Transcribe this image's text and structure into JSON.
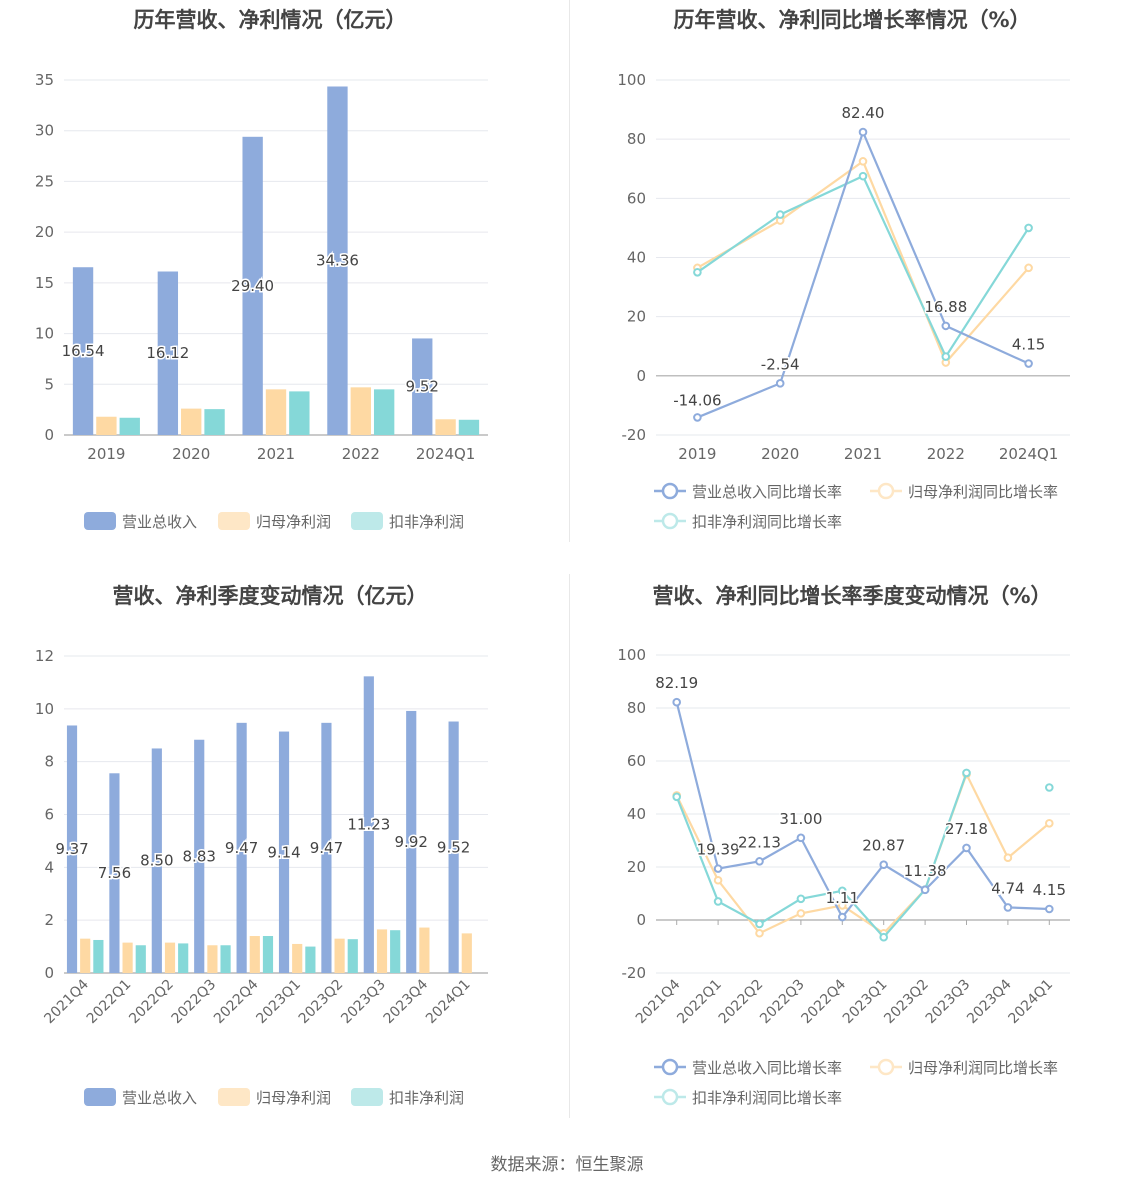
{
  "source": "数据来源：恒生聚源",
  "colors": {
    "revenue": "#8eabdc",
    "net_profit": "#fed9a3",
    "deducted_profit": "#85d8d8",
    "axis": "#aaaaaa",
    "grid": "#e6e8ee",
    "text": "#666666",
    "label": "#444444"
  },
  "chart_data": [
    {
      "type": "bar",
      "title": "历年营收、净利情况（亿元）",
      "categories": [
        "2019",
        "2020",
        "2021",
        "2022",
        "2024Q1"
      ],
      "ylim": [
        0,
        35
      ],
      "yticks": [
        0,
        5,
        10,
        15,
        20,
        25,
        30,
        35
      ],
      "series": [
        {
          "name": "营业总收入",
          "values": [
            16.54,
            16.12,
            29.4,
            34.36,
            9.52
          ],
          "labels": [
            "16.54",
            "16.12",
            "29.40",
            "34.36",
            "9.52"
          ]
        },
        {
          "name": "归母净利润",
          "values": [
            1.8,
            2.6,
            4.5,
            4.7,
            1.55
          ]
        },
        {
          "name": "扣非净利润",
          "values": [
            1.7,
            2.55,
            4.3,
            4.5,
            1.5
          ]
        }
      ],
      "legend": "bottom",
      "grid": true
    },
    {
      "type": "line",
      "title": "历年营收、净利同比增长率情况（%）",
      "categories": [
        "2019",
        "2020",
        "2021",
        "2022",
        "2024Q1"
      ],
      "ylim": [
        -20,
        100
      ],
      "yticks": [
        -20,
        0,
        20,
        40,
        60,
        80,
        100
      ],
      "series": [
        {
          "name": "营业总收入同比增长率",
          "values": [
            -14.06,
            -2.54,
            82.4,
            16.88,
            4.15
          ],
          "labels": [
            "-14.06",
            "-2.54",
            "82.40",
            "16.88",
            "4.15"
          ]
        },
        {
          "name": "归母净利润同比增长率",
          "values": [
            36.5,
            52.5,
            72.5,
            4.5,
            36.5
          ]
        },
        {
          "name": "扣非净利润同比增长率",
          "values": [
            35,
            54.5,
            67.5,
            6.5,
            50
          ]
        }
      ],
      "legend": "bottom",
      "grid": true
    },
    {
      "type": "bar",
      "title": "营收、净利季度变动情况（亿元）",
      "categories": [
        "2021Q4",
        "2022Q1",
        "2022Q2",
        "2022Q3",
        "2022Q4",
        "2023Q1",
        "2023Q2",
        "2023Q3",
        "2023Q4",
        "2024Q1"
      ],
      "ylim": [
        0,
        12
      ],
      "yticks": [
        0,
        2,
        4,
        6,
        8,
        10,
        12
      ],
      "series": [
        {
          "name": "营业总收入",
          "values": [
            9.37,
            7.56,
            8.5,
            8.83,
            9.47,
            9.14,
            9.47,
            11.23,
            9.92,
            9.52
          ],
          "labels": [
            "9.37",
            "7.56",
            "8.50",
            "8.83",
            "9.47",
            "9.14",
            "9.47",
            "11.23",
            "9.92",
            "9.52"
          ]
        },
        {
          "name": "归母净利润",
          "values": [
            1.3,
            1.15,
            1.15,
            1.05,
            1.4,
            1.1,
            1.3,
            1.65,
            1.72,
            1.5
          ]
        },
        {
          "name": "扣非净利润",
          "values": [
            1.25,
            1.05,
            1.12,
            1.05,
            1.4,
            1.0,
            1.28,
            1.62,
            null,
            null
          ]
        }
      ],
      "legend": "bottom",
      "grid": true
    },
    {
      "type": "line",
      "title": "营收、净利同比增长率季度变动情况（%）",
      "categories": [
        "2021Q4",
        "2022Q1",
        "2022Q2",
        "2022Q3",
        "2022Q4",
        "2023Q1",
        "2023Q2",
        "2023Q3",
        "2023Q4",
        "2024Q1"
      ],
      "ylim": [
        -20,
        100
      ],
      "yticks": [
        -20,
        0,
        20,
        40,
        60,
        80,
        100
      ],
      "series": [
        {
          "name": "营业总收入同比增长率",
          "values": [
            82.19,
            19.39,
            22.13,
            31.0,
            1.11,
            20.87,
            11.38,
            27.18,
            4.74,
            4.15
          ],
          "labels": [
            "82.19",
            "19.39",
            "22.13",
            "31.00",
            "1.11",
            "20.87",
            "11.38",
            "27.18",
            "4.74",
            "4.15"
          ]
        },
        {
          "name": "归母净利润同比增长率",
          "values": [
            47,
            15,
            -5,
            2.5,
            5.5,
            -5,
            11.5,
            55,
            23.5,
            36.5
          ]
        },
        {
          "name": "扣非净利润同比增长率",
          "values": [
            46.5,
            7,
            -1.5,
            8,
            11,
            -6.5,
            11.5,
            55.5,
            null,
            50
          ]
        }
      ],
      "legend": "bottom",
      "grid": true
    }
  ]
}
